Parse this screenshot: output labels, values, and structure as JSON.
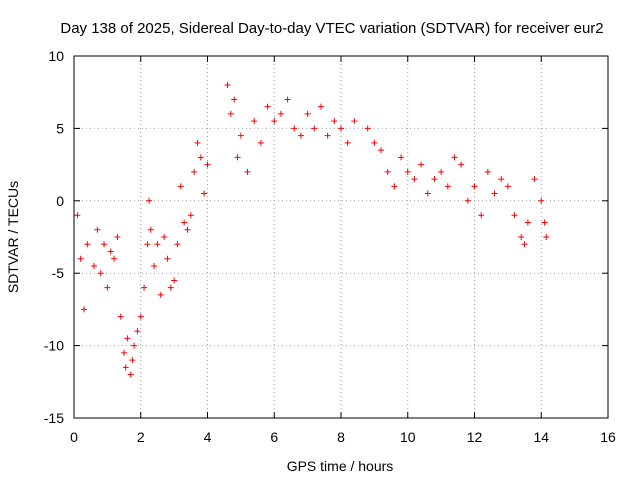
{
  "chart_data": {
    "type": "scatter",
    "title": "Day 138 of 2025, Sidereal Day-to-day VTEC variation (SDTVAR) for receiver eur2",
    "xlabel": "GPS time / hours",
    "ylabel": "SDTVAR / TECUs",
    "xlim": [
      0,
      16
    ],
    "ylim": [
      -15,
      10
    ],
    "xticks": [
      "0",
      "2",
      "4",
      "6",
      "8",
      "10",
      "12",
      "14",
      "16"
    ],
    "yticks": [
      "-15",
      "-10",
      "-5",
      "0",
      "5",
      "10"
    ],
    "grid": true,
    "marker": "+",
    "color": "#ff0000",
    "series": [
      {
        "name": "SDTVAR",
        "x": [
          0.1,
          0.2,
          0.3,
          0.4,
          0.6,
          0.7,
          0.8,
          0.9,
          1.0,
          1.1,
          1.2,
          1.3,
          1.4,
          1.5,
          1.55,
          1.6,
          1.7,
          1.75,
          1.8,
          1.9,
          2.0,
          2.1,
          2.2,
          2.25,
          2.3,
          2.4,
          2.5,
          2.6,
          2.7,
          2.8,
          2.9,
          3.0,
          3.1,
          3.2,
          3.3,
          3.4,
          3.5,
          3.6,
          3.7,
          3.8,
          3.9,
          4.0,
          4.6,
          4.7,
          4.8,
          4.9,
          5.0,
          5.2,
          5.4,
          5.6,
          5.8,
          6.0,
          6.2,
          6.4,
          6.6,
          6.8,
          7.0,
          7.2,
          7.4,
          7.6,
          7.8,
          8.0,
          8.2,
          8.4,
          8.8,
          9.0,
          9.2,
          9.4,
          9.6,
          9.8,
          10.0,
          10.2,
          10.4,
          10.6,
          10.8,
          11.0,
          11.2,
          11.4,
          11.6,
          11.8,
          12.0,
          12.2,
          12.4,
          12.6,
          12.8,
          13.0,
          13.2,
          13.4,
          13.5,
          13.6,
          13.8,
          14.0,
          14.1,
          14.15
        ],
        "y": [
          -1.0,
          -4.0,
          -7.5,
          -3.0,
          -4.5,
          -2.0,
          -5.0,
          -3.0,
          -6.0,
          -3.5,
          -4.0,
          -2.5,
          -8.0,
          -10.5,
          -11.5,
          -9.5,
          -12.0,
          -11.0,
          -10.0,
          -9.0,
          -8.0,
          -6.0,
          -3.0,
          0.0,
          -2.0,
          -4.5,
          -3.0,
          -6.5,
          -2.5,
          -4.0,
          -6.0,
          -5.5,
          -3.0,
          1.0,
          -1.5,
          -2.0,
          -1.0,
          2.0,
          4.0,
          3.0,
          0.5,
          2.5,
          8.0,
          6.0,
          7.0,
          3.0,
          4.5,
          2.0,
          5.5,
          4.0,
          6.5,
          5.5,
          6.0,
          7.0,
          5.0,
          4.5,
          6.0,
          5.0,
          6.5,
          4.5,
          5.5,
          5.0,
          4.0,
          5.5,
          5.0,
          4.0,
          3.5,
          2.0,
          1.0,
          3.0,
          2.0,
          1.5,
          2.5,
          0.5,
          1.5,
          2.0,
          1.0,
          3.0,
          2.5,
          0.0,
          1.0,
          -1.0,
          2.0,
          0.5,
          1.5,
          1.0,
          -1.0,
          -2.5,
          -3.0,
          -1.5,
          1.5,
          0.0,
          -1.5,
          -2.5
        ]
      }
    ]
  }
}
